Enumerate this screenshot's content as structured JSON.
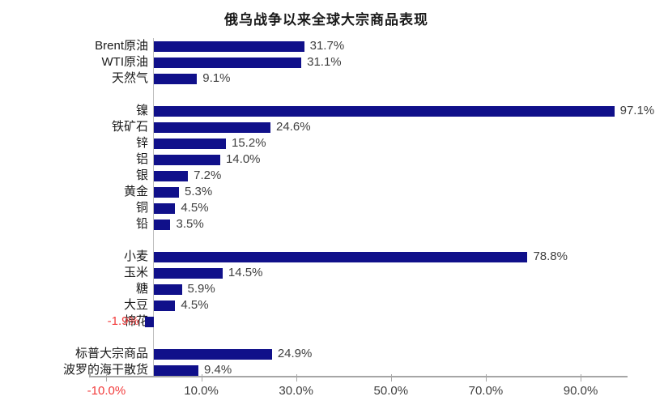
{
  "chart_data": {
    "type": "bar",
    "orientation": "horizontal",
    "title": "俄乌战争以来全球大宗商品表现",
    "xlabel": "",
    "ylabel": "",
    "xlim": [
      -10,
      100
    ],
    "grid": false,
    "legend": false,
    "bar_color": "#10108a",
    "positive_label_color": "#3f3f3f",
    "negative_label_color": "#f23b3b",
    "axis_color": "#a6a6a6",
    "xticks": [
      {
        "value": -10,
        "label": "-10.0%"
      },
      {
        "value": 10,
        "label": "10.0%"
      },
      {
        "value": 30,
        "label": "30.0%"
      },
      {
        "value": 50,
        "label": "50.0%"
      },
      {
        "value": 70,
        "label": "70.0%"
      },
      {
        "value": 90,
        "label": "90.0%"
      }
    ],
    "groups": [
      [
        {
          "label": "Brent原油",
          "value": 31.7,
          "value_label": "31.7%"
        },
        {
          "label": "WTI原油",
          "value": 31.1,
          "value_label": "31.1%"
        },
        {
          "label": "天然气",
          "value": 9.1,
          "value_label": "9.1%"
        }
      ],
      [
        {
          "label": "镍",
          "value": 97.1,
          "value_label": "97.1%"
        },
        {
          "label": "铁矿石",
          "value": 24.6,
          "value_label": "24.6%"
        },
        {
          "label": "锌",
          "value": 15.2,
          "value_label": "15.2%"
        },
        {
          "label": "铝",
          "value": 14.0,
          "value_label": "14.0%"
        },
        {
          "label": "银",
          "value": 7.2,
          "value_label": "7.2%"
        },
        {
          "label": "黄金",
          "value": 5.3,
          "value_label": "5.3%"
        },
        {
          "label": "铜",
          "value": 4.5,
          "value_label": "4.5%"
        },
        {
          "label": "铅",
          "value": 3.5,
          "value_label": "3.5%"
        }
      ],
      [
        {
          "label": "小麦",
          "value": 78.8,
          "value_label": "78.8%"
        },
        {
          "label": "玉米",
          "value": 14.5,
          "value_label": "14.5%"
        },
        {
          "label": "糖",
          "value": 5.9,
          "value_label": "5.9%"
        },
        {
          "label": "大豆",
          "value": 4.5,
          "value_label": "4.5%"
        },
        {
          "label": "棉花",
          "value": -1.9,
          "value_label": "-1.9%"
        }
      ],
      [
        {
          "label": "标普大宗商品",
          "value": 24.9,
          "value_label": "24.9%"
        },
        {
          "label": "波罗的海干散货",
          "value": 9.4,
          "value_label": "9.4%"
        }
      ]
    ]
  }
}
